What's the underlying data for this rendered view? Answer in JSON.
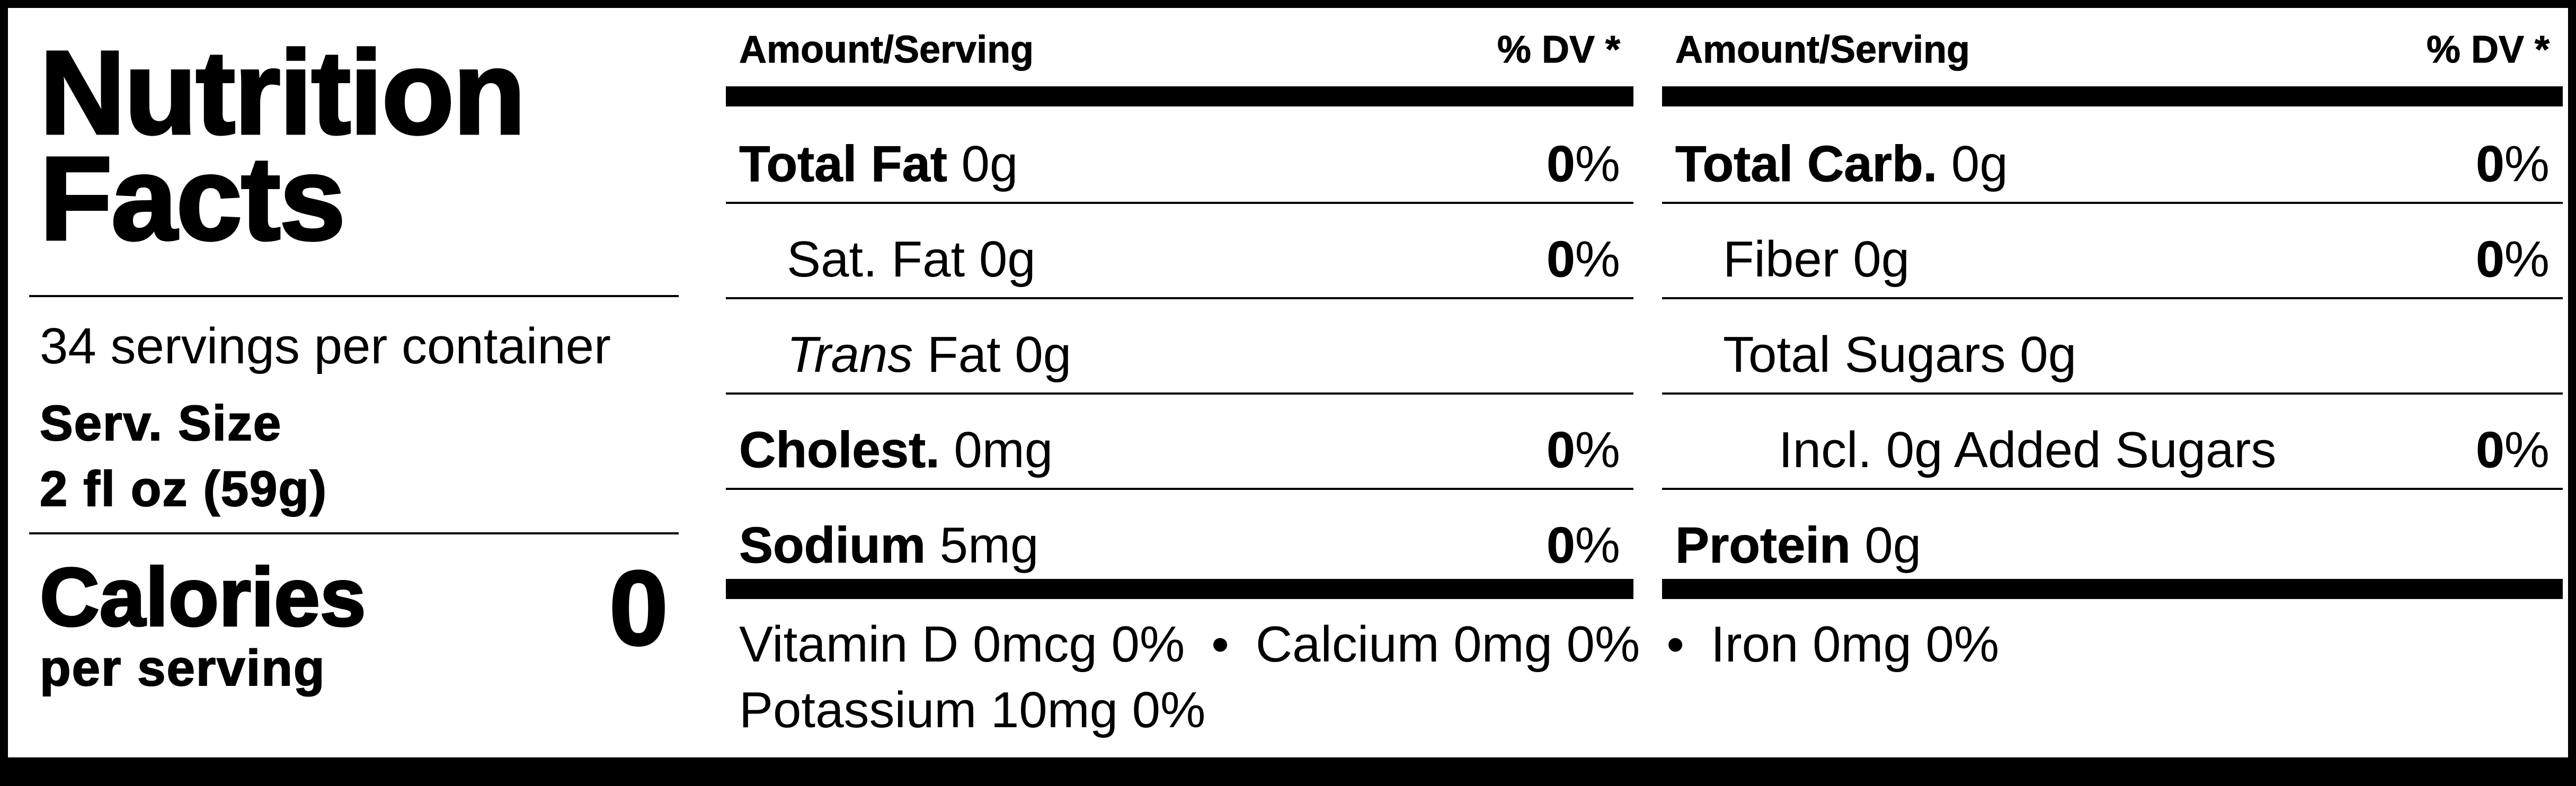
{
  "label": {
    "title_line1": "Nutrition",
    "title_line2": "Facts",
    "servings_per_container": "34 servings per container",
    "serving_size_label": "Serv. Size",
    "serving_size_value": "2 fl oz (59g)",
    "calories_label": "Calories",
    "per_serving": "per serving",
    "calories_value": "0"
  },
  "columns": [
    {
      "head_left": "Amount/Serving",
      "head_right": "% DV *",
      "rows": [
        {
          "name_bold": "Total Fat",
          "name_rest": " 0g",
          "pct_bold": "0",
          "pct_rest": "%"
        },
        {
          "name_plain": "Sat. Fat 0g",
          "pct_bold": "0",
          "pct_rest": "%"
        },
        {
          "name_italic": "Trans",
          "name_rest": " Fat 0g"
        },
        {
          "name_bold": "Cholest.",
          "name_rest": " 0mg",
          "pct_bold": "0",
          "pct_rest": "%"
        },
        {
          "name_bold": "Sodium",
          "name_rest": " 5mg",
          "pct_bold": "0",
          "pct_rest": "%"
        }
      ]
    },
    {
      "head_left": "Amount/Serving",
      "head_right": "% DV *",
      "rows": [
        {
          "name_bold": "Total Carb.",
          "name_rest": " 0g",
          "pct_bold": "0",
          "pct_rest": "%"
        },
        {
          "name_plain": "Fiber 0g",
          "pct_bold": "0",
          "pct_rest": "%"
        },
        {
          "name_plain": "Total Sugars 0g"
        },
        {
          "name_plain": "Incl. 0g Added Sugars",
          "pct_bold": "0",
          "pct_rest": "%"
        },
        {
          "name_bold": "Protein",
          "name_rest": " 0g"
        }
      ]
    }
  ],
  "vitamins": {
    "vitamin_d": "Vitamin D 0mcg 0%",
    "calcium": "Calcium 0mg 0%",
    "iron": "Iron 0mg 0%",
    "separator": "•",
    "potassium": "Potassium 10mg 0%"
  }
}
